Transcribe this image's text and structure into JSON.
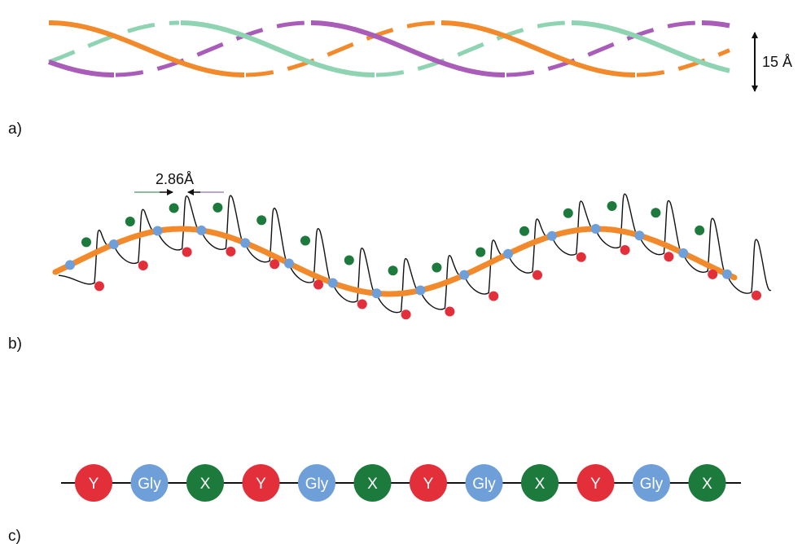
{
  "colors": {
    "orange": "#f2892a",
    "purple": "#a95cb8",
    "teal": "#8fd4b2",
    "red": "#e32f3a",
    "green": "#1c7a3c",
    "blue": "#6f9fd8",
    "black": "#111111"
  },
  "panel_a": {
    "label": "a)",
    "diameter_label": "15 Å",
    "strands": [
      {
        "name": "orange-strand",
        "color": "orange"
      },
      {
        "name": "purple-strand",
        "color": "purple"
      },
      {
        "name": "teal-strand",
        "color": "teal"
      }
    ]
  },
  "panel_b": {
    "label": "b)",
    "rise_label": "2.86Å"
  },
  "panel_c": {
    "label": "c)",
    "sequence": [
      {
        "text": "Y",
        "color": "red"
      },
      {
        "text": "Gly",
        "color": "blue"
      },
      {
        "text": "X",
        "color": "green"
      },
      {
        "text": "Y",
        "color": "red"
      },
      {
        "text": "Gly",
        "color": "blue"
      },
      {
        "text": "X",
        "color": "green"
      },
      {
        "text": "Y",
        "color": "red"
      },
      {
        "text": "Gly",
        "color": "blue"
      },
      {
        "text": "X",
        "color": "green"
      },
      {
        "text": "Y",
        "color": "red"
      },
      {
        "text": "Gly",
        "color": "blue"
      },
      {
        "text": "X",
        "color": "green"
      }
    ]
  }
}
